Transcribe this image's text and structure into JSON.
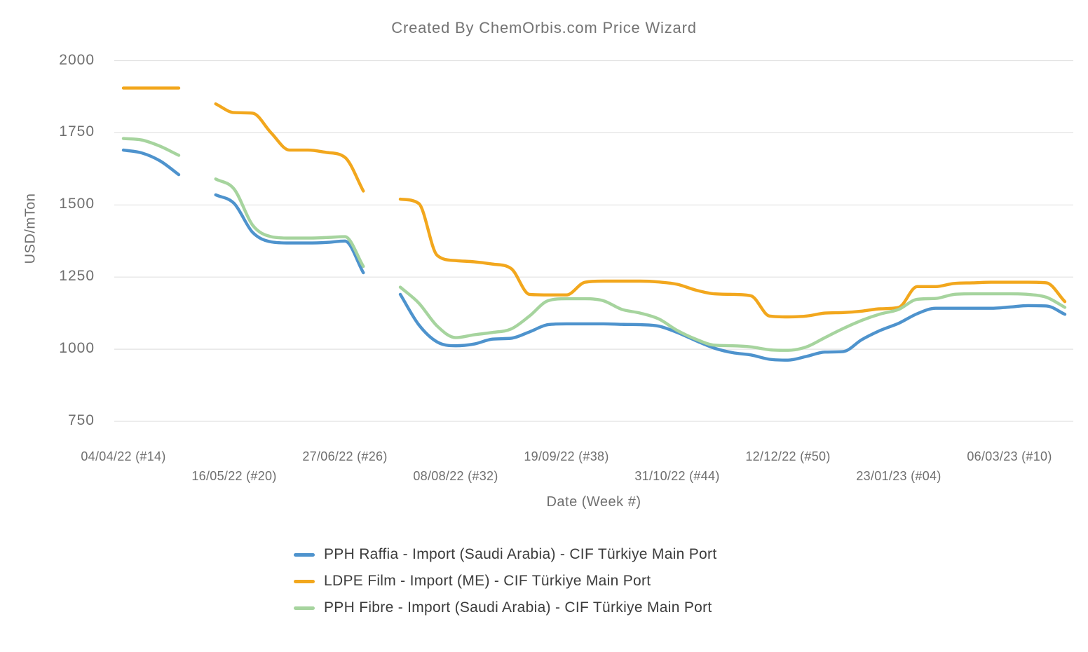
{
  "title": "Created By ChemOrbis.com Price Wizard",
  "y_axis": {
    "label": "USD/mTon",
    "ticks": [
      2000,
      1750,
      1500,
      1250,
      1000,
      750
    ]
  },
  "x_axis": {
    "label": "Date (Week #)",
    "ticks": [
      {
        "label": "04/04/22 (#14)",
        "index": 0
      },
      {
        "label": "16/05/22 (#20)",
        "index": 6
      },
      {
        "label": "27/06/22 (#26)",
        "index": 12
      },
      {
        "label": "08/08/22 (#32)",
        "index": 18
      },
      {
        "label": "19/09/22 (#38)",
        "index": 24
      },
      {
        "label": "31/10/22 (#44)",
        "index": 30
      },
      {
        "label": "12/12/22 (#50)",
        "index": 36
      },
      {
        "label": "23/01/23 (#04)",
        "index": 42
      },
      {
        "label": "06/03/23 (#10)",
        "index": 48
      }
    ]
  },
  "chart_data": {
    "type": "line",
    "x_unit": "weekly (ticks every 6 weeks, labeled dd/mm/yy (#week))",
    "ylim": [
      750,
      2000
    ],
    "grid": "horizontal",
    "legend_position": "bottom",
    "gap_note_values": "null entries are weeks with no published price (visible line gaps)",
    "series": [
      {
        "name": "PPH Raffia - Import (Saudi Arabia) - CIF Türkiye Main Port",
        "slug": "pph-raffia",
        "color": "#4e93cd",
        "values": [
          1690,
          1680,
          1652,
          1605,
          null,
          1535,
          1505,
          1405,
          1372,
          1368,
          1368,
          1370,
          1375,
          1265,
          null,
          1190,
          1085,
          1025,
          1012,
          1018,
          1035,
          1038,
          1060,
          1085,
          1088,
          1088,
          1088,
          1086,
          1085,
          1080,
          1058,
          1030,
          1004,
          988,
          980,
          965,
          962,
          975,
          990,
          992,
          1033,
          1065,
          1090,
          1123,
          1142,
          1142,
          1142,
          1142,
          1146,
          1151,
          1150,
          1121
        ]
      },
      {
        "name": "LDPE Film - Import (ME) - CIF Türkiye Main Port",
        "slug": "ldpe-film",
        "color": "#f2a71d",
        "values": [
          1905,
          1905,
          1905,
          1905,
          null,
          1850,
          1820,
          1818,
          1750,
          1690,
          1690,
          1682,
          1665,
          1548,
          null,
          1520,
          1505,
          1325,
          1307,
          1303,
          1295,
          1280,
          1190,
          1188,
          1188,
          1232,
          1236,
          1236,
          1236,
          1233,
          1225,
          1205,
          1192,
          1190,
          1185,
          1115,
          1112,
          1115,
          1125,
          1127,
          1132,
          1140,
          1145,
          1217,
          1217,
          1228,
          1230,
          1232,
          1232,
          1232,
          1230,
          1165
        ]
      },
      {
        "name": "PPH Fibre - Import (Saudi Arabia) - CIF Türkiye Main Port",
        "slug": "pph-fibre",
        "color": "#a6d49e",
        "values": [
          1730,
          1725,
          1703,
          1672,
          null,
          1590,
          1555,
          1430,
          1390,
          1385,
          1385,
          1387,
          1390,
          1287,
          null,
          1215,
          1160,
          1080,
          1040,
          1050,
          1058,
          1070,
          1115,
          1168,
          1175,
          1175,
          1168,
          1138,
          1125,
          1105,
          1065,
          1035,
          1014,
          1012,
          1008,
          998,
          996,
          1008,
          1040,
          1072,
          1100,
          1122,
          1138,
          1173,
          1176,
          1190,
          1192,
          1192,
          1192,
          1190,
          1180,
          1145
        ]
      }
    ],
    "style": {
      "grid_color": "#e2e2e2",
      "line_width": 4.4,
      "text_gray": "#6f6f6f",
      "title_gray": "#747474",
      "legend_text": "#3c3c3c",
      "background": "#ffffff"
    }
  }
}
